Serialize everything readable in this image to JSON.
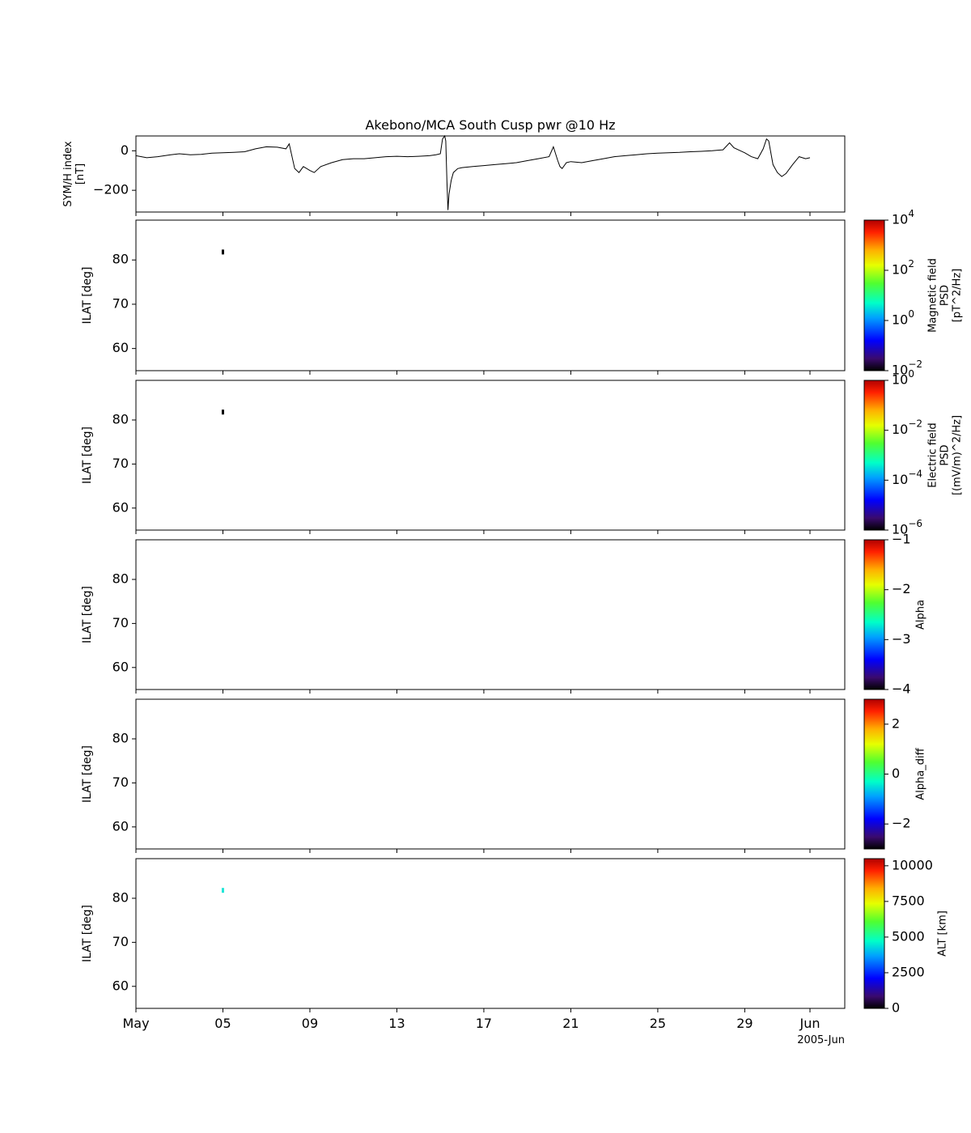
{
  "title": "Akebono/MCA South Cusp pwr @10 Hz",
  "colors": {
    "axis": "#000000",
    "trace": "#000000",
    "marker_black": "#000000",
    "marker_alt": "#22e6d8"
  },
  "x_axis": {
    "ticks": [
      "May",
      "05",
      "09",
      "13",
      "17",
      "21",
      "25",
      "29",
      "Jun"
    ],
    "tick_days": [
      1,
      5,
      9,
      13,
      17,
      21,
      25,
      29,
      32
    ],
    "range_days": [
      1,
      33.6
    ],
    "year_label": "2005-Jun"
  },
  "chart_data": [
    {
      "type": "line",
      "ylabel": "SYM/H index\n[nT]",
      "yticks": [
        0,
        -200
      ],
      "ytick_labels": [
        "0",
        "−200"
      ],
      "ylim": [
        -310,
        75
      ],
      "series": [
        {
          "x": [
            1.0,
            1.5,
            2.0,
            2.6,
            3.0,
            3.5,
            4.0,
            4.5,
            5.0,
            5.5,
            6.0,
            6.5,
            7.0,
            7.5,
            7.9,
            8.05,
            8.3,
            8.5,
            8.7,
            9.0,
            9.2,
            9.5,
            10.0,
            10.5,
            11.0,
            11.5,
            12.0,
            12.5,
            13.0,
            13.5,
            14.0,
            14.5,
            14.8,
            15.0,
            15.1,
            15.2,
            15.25,
            15.3,
            15.35,
            15.4,
            15.5,
            15.6,
            15.8,
            16.0,
            16.5,
            17.0,
            17.5,
            18.0,
            18.5,
            19.0,
            19.5,
            20.0,
            20.2,
            20.4,
            20.5,
            20.6,
            20.8,
            21.0,
            21.5,
            22.0,
            22.5,
            23.0,
            23.5,
            24.0,
            24.5,
            25.0,
            25.5,
            26.0,
            26.5,
            27.0,
            27.5,
            28.0,
            28.3,
            28.5,
            28.8,
            29.0,
            29.3,
            29.6,
            29.85,
            30.0,
            30.1,
            30.3,
            30.5,
            30.7,
            30.9,
            31.2,
            31.5,
            31.8,
            32.0
          ],
          "y": [
            -25,
            -35,
            -30,
            -20,
            -15,
            -20,
            -18,
            -12,
            -10,
            -8,
            -5,
            10,
            20,
            18,
            10,
            35,
            -90,
            -110,
            -80,
            -100,
            -110,
            -80,
            -60,
            -45,
            -40,
            -40,
            -35,
            -30,
            -28,
            -30,
            -28,
            -25,
            -20,
            -15,
            60,
            75,
            50,
            -150,
            -300,
            -220,
            -150,
            -110,
            -90,
            -85,
            -80,
            -75,
            -70,
            -65,
            -60,
            -50,
            -40,
            -30,
            20,
            -50,
            -80,
            -90,
            -60,
            -55,
            -60,
            -50,
            -40,
            -30,
            -25,
            -20,
            -15,
            -12,
            -10,
            -8,
            -5,
            -3,
            0,
            5,
            40,
            15,
            0,
            -10,
            -30,
            -40,
            10,
            60,
            50,
            -70,
            -110,
            -130,
            -115,
            -70,
            -30,
            -40,
            -35
          ]
        }
      ]
    },
    {
      "type": "heatmap",
      "ylabel": "ILAT [deg]",
      "yticks": [
        80,
        70,
        60
      ],
      "ylim": [
        55,
        89
      ],
      "points": [
        {
          "x": 5.0,
          "y": 81.8,
          "color": "#000000"
        }
      ],
      "colorbar": {
        "label": "Magnetic field\nPSD\n[pT^2/Hz]",
        "tick_values": [
          4,
          2,
          0,
          -2
        ],
        "tick_labels": [
          "10",
          "10",
          "10",
          "10"
        ],
        "tick_exponents": [
          "4",
          "2",
          "0",
          "−2"
        ],
        "scale": "log",
        "range": [
          -2,
          4
        ]
      }
    },
    {
      "type": "heatmap",
      "ylabel": "ILAT [deg]",
      "yticks": [
        80,
        70,
        60
      ],
      "ylim": [
        55,
        89
      ],
      "points": [
        {
          "x": 5.0,
          "y": 81.8,
          "color": "#000000"
        }
      ],
      "colorbar": {
        "label": "Electric field\nPSD\n[(mV/m)^2/Hz]",
        "tick_values": [
          0,
          -2,
          -4,
          -6
        ],
        "tick_labels": [
          "10",
          "10",
          "10",
          "10"
        ],
        "tick_exponents": [
          "0",
          "−2",
          "−4",
          "−6"
        ],
        "scale": "log",
        "range": [
          -6,
          0
        ]
      }
    },
    {
      "type": "heatmap",
      "ylabel": "ILAT [deg]",
      "yticks": [
        80,
        70,
        60
      ],
      "ylim": [
        55,
        89
      ],
      "points": [],
      "colorbar": {
        "label": "Alpha",
        "tick_values": [
          -1,
          -2,
          -3,
          -4
        ],
        "tick_labels": [
          "−1",
          "−2",
          "−3",
          "−4"
        ],
        "range": [
          -4,
          -1
        ]
      }
    },
    {
      "type": "heatmap",
      "ylabel": "ILAT [deg]",
      "yticks": [
        80,
        70,
        60
      ],
      "ylim": [
        55,
        89
      ],
      "points": [],
      "colorbar": {
        "label": "Alpha_diff",
        "tick_values": [
          2,
          0,
          -2
        ],
        "tick_labels": [
          "2",
          "0",
          "−2"
        ],
        "range": [
          -3,
          3
        ]
      }
    },
    {
      "type": "heatmap",
      "ylabel": "ILAT [deg]",
      "yticks": [
        80,
        70,
        60
      ],
      "ylim": [
        55,
        89
      ],
      "points": [
        {
          "x": 5.0,
          "y": 81.8,
          "color": "#22e6d8"
        }
      ],
      "colorbar": {
        "label": "ALT [km]",
        "tick_values": [
          10000,
          7500,
          5000,
          2500,
          0
        ],
        "tick_labels": [
          "10000",
          "7500",
          "5000",
          "2500",
          "0"
        ],
        "range": [
          0,
          10500
        ]
      }
    }
  ]
}
